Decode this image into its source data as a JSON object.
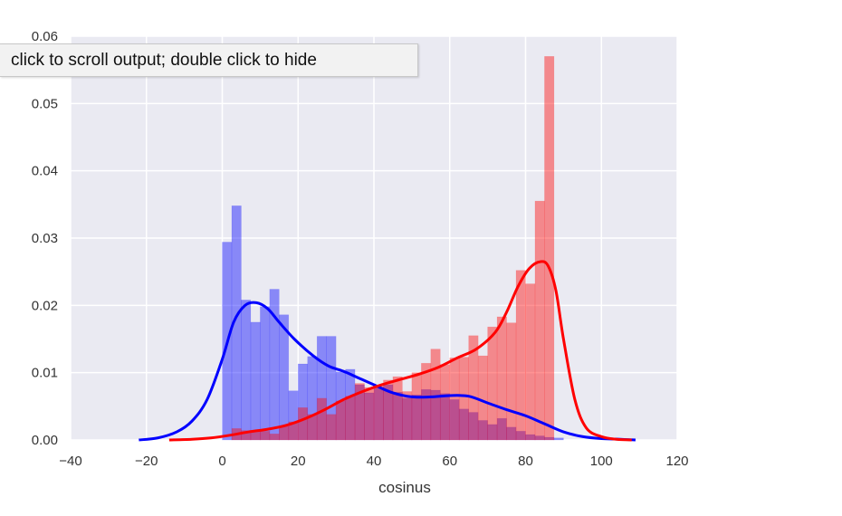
{
  "tooltip": {
    "text": "click to scroll output; double click to hide"
  },
  "chart_data": {
    "type": "bar",
    "xlabel": "cosinus",
    "ylabel": "",
    "xlim": [
      -40,
      120
    ],
    "ylim": [
      0,
      0.06
    ],
    "x_ticks": [
      -40,
      -20,
      0,
      20,
      40,
      60,
      80,
      100,
      120
    ],
    "x_tick_labels": [
      "−40",
      "−20",
      "0",
      "20",
      "40",
      "60",
      "80",
      "100",
      "120"
    ],
    "y_ticks": [
      0,
      0.01,
      0.02,
      0.03,
      0.04,
      0.05,
      0.06
    ],
    "y_tick_labels": [
      "0.00",
      "0.01",
      "0.02",
      "0.03",
      "0.04",
      "0.05",
      "0.06"
    ],
    "grid": true,
    "background": "#eaeaf2",
    "bins": {
      "start": 0,
      "width": 2.5,
      "series": [
        {
          "color": "#0000ff",
          "hist_color": "#8080f2",
          "values": [
            0.0294,
            0.0348,
            0.0208,
            0.0175,
            0.0198,
            0.0224,
            0.0186,
            0.0073,
            0.0113,
            0.0124,
            0.0154,
            0.0154,
            0.0101,
            0.0105,
            0.0082,
            0.007,
            0.0078,
            0.0082,
            0.0071,
            0.0062,
            0.0067,
            0.0075,
            0.0074,
            0.0069,
            0.006,
            0.0046,
            0.0041,
            0.0029,
            0.0023,
            0.0032,
            0.0019,
            0.0013,
            0.0008,
            0.0006,
            0.0004,
            0.0003
          ]
        },
        {
          "color": "#ff0000",
          "hist_color": "#f29090",
          "values": [
            0.0,
            0.0017,
            0.0014,
            0.0014,
            0.0013,
            0.0009,
            0.002,
            0.0027,
            0.0048,
            0.0038,
            0.0062,
            0.0038,
            0.0058,
            0.0065,
            0.0084,
            0.0078,
            0.008,
            0.0089,
            0.0094,
            0.0072,
            0.01,
            0.0114,
            0.0135,
            0.0112,
            0.0122,
            0.0123,
            0.0155,
            0.0125,
            0.0168,
            0.0183,
            0.0174,
            0.0252,
            0.0232,
            0.0355,
            0.057,
            0.0
          ]
        }
      ]
    },
    "kde": [
      {
        "color": "#0000ff",
        "x": [
          -22,
          -17,
          -12,
          -8,
          -4,
          0,
          3,
          6,
          9,
          12,
          15,
          19,
          24,
          28,
          32,
          36,
          40,
          45,
          50,
          55,
          60,
          65,
          70,
          75,
          80,
          85,
          90,
          95,
          100,
          105,
          109
        ],
        "y": [
          0.0,
          0.0003,
          0.0012,
          0.0028,
          0.006,
          0.012,
          0.0175,
          0.02,
          0.0204,
          0.0195,
          0.0175,
          0.015,
          0.0125,
          0.011,
          0.0102,
          0.0092,
          0.0082,
          0.007,
          0.0064,
          0.0064,
          0.0066,
          0.0065,
          0.0055,
          0.0045,
          0.0036,
          0.0024,
          0.0012,
          0.0005,
          0.0002,
          0.0001,
          0.0
        ]
      },
      {
        "color": "#ff0000",
        "x": [
          -14,
          -8,
          -3,
          2,
          7,
          12,
          17,
          22,
          27,
          32,
          37,
          42,
          47,
          52,
          57,
          62,
          67,
          72,
          75,
          78,
          81,
          84,
          86,
          88,
          90,
          93,
          96,
          100,
          104,
          108
        ],
        "y": [
          0.0,
          0.0001,
          0.0003,
          0.0007,
          0.0012,
          0.0016,
          0.0022,
          0.0032,
          0.0045,
          0.006,
          0.0072,
          0.0082,
          0.009,
          0.0098,
          0.0108,
          0.0122,
          0.0135,
          0.016,
          0.019,
          0.0228,
          0.0255,
          0.0265,
          0.0258,
          0.0222,
          0.015,
          0.006,
          0.0018,
          0.0005,
          0.0001,
          0.0
        ]
      }
    ]
  }
}
